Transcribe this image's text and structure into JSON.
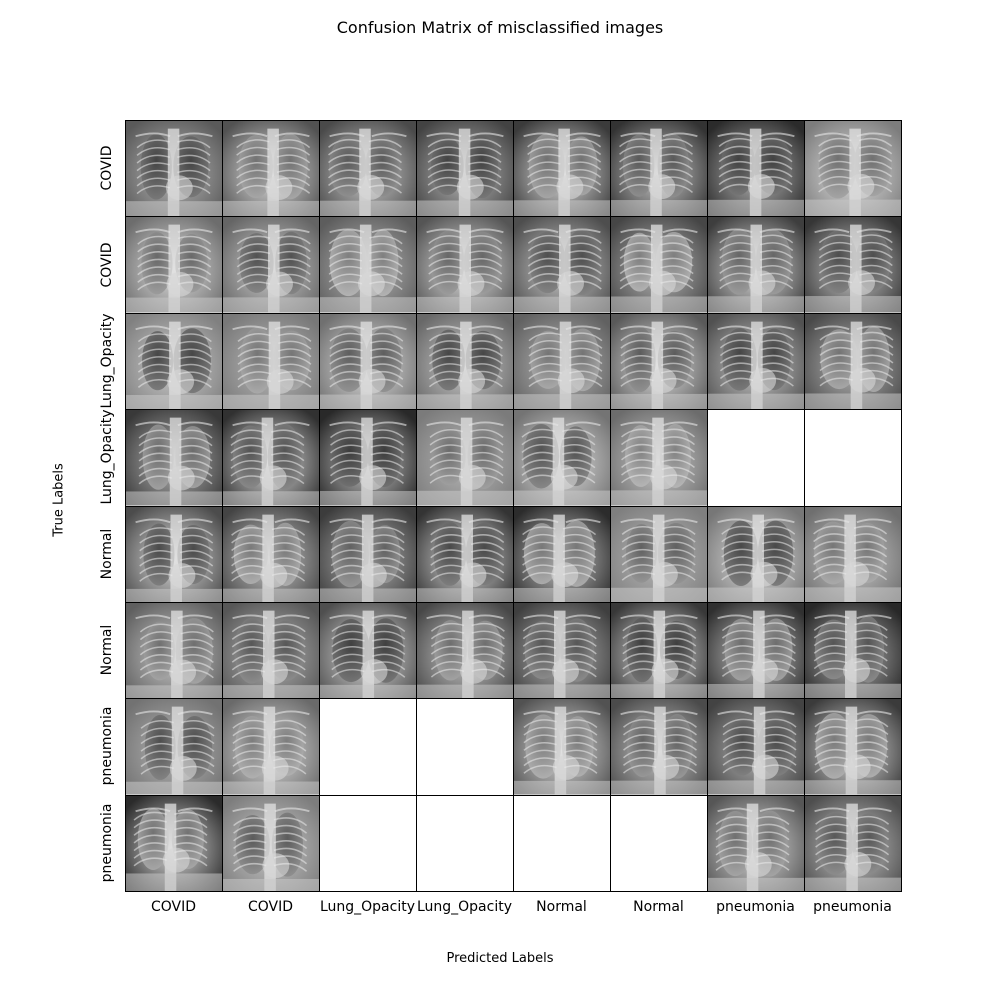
{
  "chart_data": {
    "type": "image-grid",
    "title": "Confusion Matrix of misclassified images",
    "xlabel": "Predicted Labels",
    "ylabel": "True Labels",
    "col_labels": [
      "COVID",
      "COVID",
      "Lung_Opacity",
      "Lung_Opacity",
      "Normal",
      "Normal",
      "pneumonia",
      "pneumonia"
    ],
    "row_labels": [
      "COVID",
      "COVID",
      "Lung_Opacity",
      "Lung_Opacity",
      "Normal",
      "Normal",
      "pneumonia",
      "pneumonia"
    ],
    "cells": [
      [
        1,
        1,
        1,
        1,
        1,
        1,
        1,
        1
      ],
      [
        1,
        1,
        1,
        1,
        1,
        1,
        1,
        1
      ],
      [
        1,
        1,
        1,
        1,
        1,
        1,
        1,
        1
      ],
      [
        1,
        1,
        1,
        1,
        1,
        1,
        0,
        0
      ],
      [
        1,
        1,
        1,
        1,
        1,
        1,
        1,
        1
      ],
      [
        1,
        1,
        1,
        1,
        1,
        1,
        1,
        1
      ],
      [
        1,
        1,
        0,
        0,
        1,
        1,
        1,
        1
      ],
      [
        1,
        1,
        0,
        0,
        0,
        0,
        1,
        1
      ]
    ],
    "image_type": "chest-xray",
    "colors": {
      "empty_cell": "#ffffff",
      "border": "#000000"
    }
  }
}
